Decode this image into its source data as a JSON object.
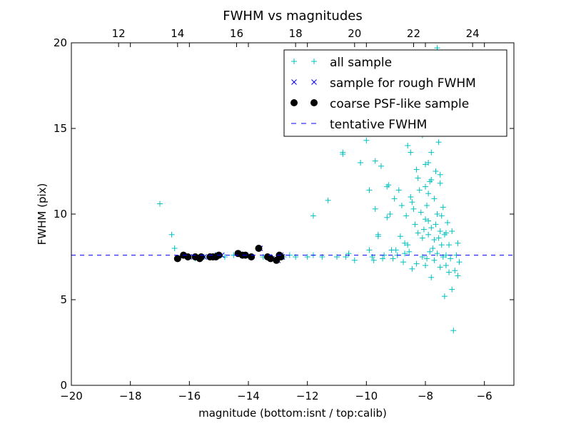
{
  "chart_data": {
    "type": "scatter",
    "title": "FWHM vs magnitudes",
    "xlabel": "magnitude (bottom:isnt / top:calib)",
    "ylabel": "FWHM (pix)",
    "xlim": [
      -20,
      -5
    ],
    "ylim": [
      0,
      20
    ],
    "x_ticks": [
      "−20",
      "−18",
      "−16",
      "−14",
      "−12",
      "−10",
      "−8",
      "−6"
    ],
    "x_tick_values": [
      -20,
      -18,
      -16,
      -14,
      -12,
      -10,
      -8,
      -6
    ],
    "y_ticks": [
      "0",
      "5",
      "10",
      "15",
      "20"
    ],
    "y_tick_values": [
      0,
      5,
      10,
      15,
      20
    ],
    "top_axis": {
      "ticks": [
        "12",
        "14",
        "16",
        "18",
        "20",
        "22",
        "24"
      ],
      "tick_values": [
        12,
        14,
        16,
        18,
        20,
        22,
        24
      ],
      "lim": [
        10.4,
        25.4
      ]
    },
    "legend": {
      "position": "top-right",
      "entries": [
        "all sample",
        "sample for rough FWHM",
        "coarse PSF-like sample",
        "tentative FWHM"
      ]
    },
    "grid": false,
    "tentative_fwhm": 7.6,
    "series": [
      {
        "name": "all sample",
        "marker": "+",
        "color": "#00bfbf",
        "points": [
          [
            -17.0,
            10.6
          ],
          [
            -16.6,
            8.8
          ],
          [
            -16.5,
            8.0
          ],
          [
            -16.4,
            7.4
          ],
          [
            -16.2,
            7.6
          ],
          [
            -16.0,
            7.5
          ],
          [
            -15.8,
            7.4
          ],
          [
            -15.5,
            7.5
          ],
          [
            -15.3,
            7.5
          ],
          [
            -15.1,
            7.6
          ],
          [
            -14.8,
            7.5
          ],
          [
            -14.5,
            7.6
          ],
          [
            -14.2,
            7.6
          ],
          [
            -13.9,
            7.5
          ],
          [
            -13.5,
            7.5
          ],
          [
            -13.2,
            7.4
          ],
          [
            -12.8,
            7.5
          ],
          [
            -12.6,
            7.6
          ],
          [
            -12.4,
            7.5
          ],
          [
            -12.0,
            7.5
          ],
          [
            -11.8,
            9.9
          ],
          [
            -11.8,
            7.6
          ],
          [
            -11.5,
            7.5
          ],
          [
            -11.3,
            10.8
          ],
          [
            -11.0,
            7.5
          ],
          [
            -10.8,
            13.5
          ],
          [
            -10.8,
            13.6
          ],
          [
            -10.7,
            7.5
          ],
          [
            -10.6,
            7.7
          ],
          [
            -10.4,
            7.3
          ],
          [
            -10.2,
            13.0
          ],
          [
            -10.0,
            14.3
          ],
          [
            -9.9,
            11.4
          ],
          [
            -9.9,
            7.9
          ],
          [
            -9.8,
            7.5
          ],
          [
            -9.7,
            10.3
          ],
          [
            -9.7,
            13.1
          ],
          [
            -9.6,
            8.8
          ],
          [
            -9.6,
            8.7
          ],
          [
            -9.5,
            12.8
          ],
          [
            -9.4,
            7.6
          ],
          [
            -9.3,
            9.8
          ],
          [
            -9.3,
            11.6
          ],
          [
            -9.2,
            10.0
          ],
          [
            -9.1,
            7.4
          ],
          [
            -9.0,
            7.9
          ],
          [
            -8.9,
            11.4
          ],
          [
            -8.8,
            10.5
          ],
          [
            -8.7,
            8.3
          ],
          [
            -8.7,
            7.7
          ],
          [
            -8.6,
            14.0
          ],
          [
            -8.6,
            8.2
          ],
          [
            -8.5,
            13.6
          ],
          [
            -8.5,
            11.0
          ],
          [
            -8.4,
            10.3
          ],
          [
            -8.3,
            7.1
          ],
          [
            -8.3,
            12.6
          ],
          [
            -8.2,
            15.5
          ],
          [
            -8.2,
            11.4
          ],
          [
            -8.1,
            7.5
          ],
          [
            -8.1,
            8.6
          ],
          [
            -8.0,
            9.7
          ],
          [
            -8.0,
            12.9
          ],
          [
            -8.0,
            7.0
          ],
          [
            -7.95,
            10.5
          ],
          [
            -7.9,
            13.0
          ],
          [
            -7.9,
            11.2
          ],
          [
            -7.9,
            8.8
          ],
          [
            -7.85,
            7.8
          ],
          [
            -7.8,
            6.3
          ],
          [
            -7.8,
            12.0
          ],
          [
            -7.8,
            9.2
          ],
          [
            -7.75,
            16.4
          ],
          [
            -7.7,
            10.9
          ],
          [
            -7.7,
            7.3
          ],
          [
            -7.7,
            8.5
          ],
          [
            -7.65,
            12.5
          ],
          [
            -7.6,
            19.7
          ],
          [
            -7.6,
            10.0
          ],
          [
            -7.6,
            7.7
          ],
          [
            -7.55,
            14.2
          ],
          [
            -7.5,
            9.0
          ],
          [
            -7.5,
            6.9
          ],
          [
            -7.5,
            11.8
          ],
          [
            -7.45,
            8.2
          ],
          [
            -7.4,
            7.5
          ],
          [
            -7.4,
            10.4
          ],
          [
            -7.35,
            5.2
          ],
          [
            -7.3,
            8.9
          ],
          [
            -7.3,
            7.0
          ],
          [
            -7.25,
            9.5
          ],
          [
            -7.2,
            6.6
          ],
          [
            -7.2,
            8.2
          ],
          [
            -7.15,
            7.4
          ],
          [
            -7.1,
            5.6
          ],
          [
            -7.1,
            9.0
          ],
          [
            -7.05,
            3.2
          ],
          [
            -7.0,
            6.7
          ],
          [
            -6.95,
            7.6
          ],
          [
            -6.9,
            6.4
          ],
          [
            -6.9,
            8.3
          ],
          [
            -6.85,
            7.2
          ],
          [
            -7.9,
            16.1
          ],
          [
            -8.0,
            17.4
          ],
          [
            -7.6,
            17.8
          ],
          [
            -7.8,
            18.6
          ],
          [
            -7.6,
            16.9
          ],
          [
            -7.7,
            15.1
          ],
          [
            -7.8,
            13.6
          ],
          [
            -8.1,
            14.6
          ],
          [
            -7.5,
            12.3
          ],
          [
            -7.9,
            9.6
          ],
          [
            -8.15,
            10.1
          ],
          [
            -7.65,
            9.4
          ],
          [
            -7.75,
            8.0
          ],
          [
            -8.05,
            9.1
          ],
          [
            -7.55,
            8.6
          ],
          [
            -8.25,
            8.9
          ],
          [
            -7.35,
            8.8
          ],
          [
            -7.45,
            9.9
          ],
          [
            -8.35,
            9.4
          ],
          [
            -7.95,
            7.4
          ],
          [
            -7.3,
            7.6
          ],
          [
            -8.55,
            7.8
          ],
          [
            -8.45,
            6.8
          ],
          [
            -8.75,
            7.2
          ],
          [
            -8.95,
            7.6
          ],
          [
            -9.15,
            7.9
          ],
          [
            -9.45,
            7.4
          ],
          [
            -9.75,
            7.3
          ],
          [
            -8.65,
            9.9
          ],
          [
            -8.85,
            8.7
          ],
          [
            -9.05,
            10.9
          ],
          [
            -9.25,
            11.7
          ],
          [
            -8.45,
            10.7
          ],
          [
            -8.25,
            12.1
          ],
          [
            -8.0,
            11.6
          ],
          [
            -7.85,
            11.9
          ]
        ]
      },
      {
        "name": "sample for rough FWHM",
        "marker": "x",
        "color": "#0000ff",
        "points": [
          [
            -16.4,
            7.4
          ],
          [
            -16.2,
            7.6
          ],
          [
            -16.0,
            7.5
          ],
          [
            -15.7,
            7.5
          ],
          [
            -15.5,
            7.5
          ],
          [
            -15.2,
            7.5
          ],
          [
            -15.05,
            7.6
          ],
          [
            -14.9,
            7.6
          ],
          [
            -14.35,
            7.7
          ],
          [
            -14.2,
            7.6
          ],
          [
            -14.1,
            7.6
          ],
          [
            -13.9,
            7.5
          ],
          [
            -13.6,
            8.0
          ],
          [
            -13.3,
            7.5
          ],
          [
            -13.2,
            7.4
          ],
          [
            -13.0,
            7.3
          ],
          [
            -12.9,
            7.6
          ],
          [
            -12.85,
            7.5
          ]
        ]
      },
      {
        "name": "coarse PSF-like sample",
        "marker": "o",
        "color": "#000000",
        "points": [
          [
            -16.4,
            7.4
          ],
          [
            -16.2,
            7.6
          ],
          [
            -16.05,
            7.5
          ],
          [
            -15.8,
            7.5
          ],
          [
            -15.65,
            7.4
          ],
          [
            -15.6,
            7.5
          ],
          [
            -15.3,
            7.5
          ],
          [
            -15.2,
            7.5
          ],
          [
            -15.1,
            7.5
          ],
          [
            -15.0,
            7.6
          ],
          [
            -14.35,
            7.7
          ],
          [
            -14.2,
            7.6
          ],
          [
            -14.1,
            7.6
          ],
          [
            -13.9,
            7.5
          ],
          [
            -13.65,
            8.0
          ],
          [
            -13.35,
            7.5
          ],
          [
            -13.25,
            7.4
          ],
          [
            -13.05,
            7.3
          ],
          [
            -12.95,
            7.6
          ],
          [
            -12.9,
            7.5
          ]
        ]
      }
    ]
  }
}
